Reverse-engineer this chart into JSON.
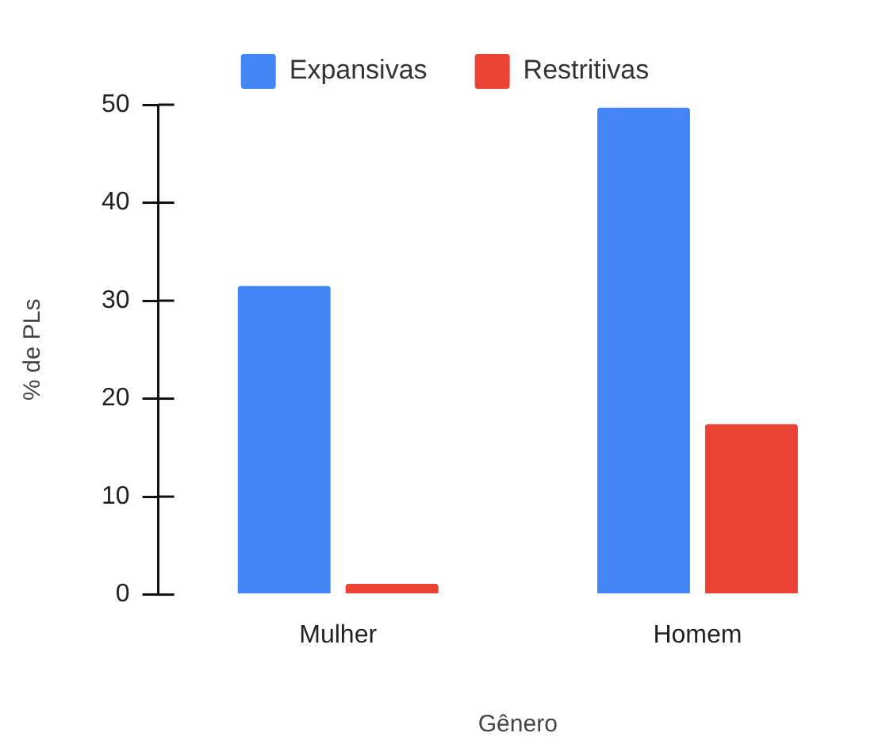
{
  "chart_data": {
    "type": "bar",
    "xlabel": "Gênero",
    "ylabel": "% de PLs",
    "categories": [
      "Mulher",
      "Homem"
    ],
    "series": [
      {
        "name": "Expansivas",
        "color": "#4285f4",
        "values": [
          31.5,
          49.7
        ]
      },
      {
        "name": "Restritivas",
        "color": "#ea4335",
        "values": [
          1.1,
          17.4
        ]
      }
    ],
    "ylim": [
      0,
      50
    ],
    "yticks": [
      0,
      10,
      20,
      30,
      40,
      50
    ],
    "legend": "top"
  }
}
